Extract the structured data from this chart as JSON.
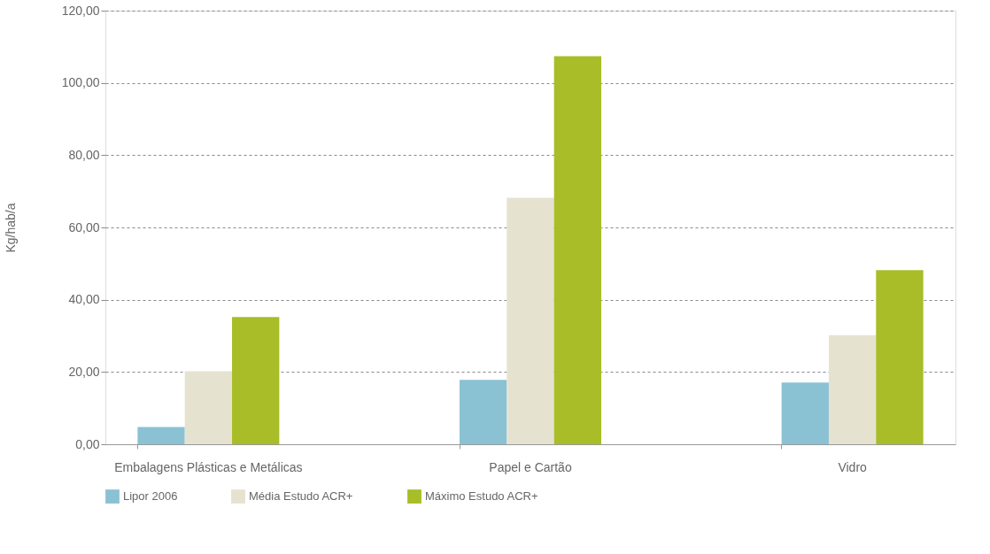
{
  "chart_data": {
    "type": "bar",
    "ylabel": "Kg/hab/a",
    "categories": [
      "Embalagens Plásticas e Metálicas",
      "Papel e Cartão",
      "Vidro"
    ],
    "series": [
      {
        "name": "Lipor 2006",
        "color": "#8ac2d4",
        "values": [
          4.8,
          17.8,
          17.1
        ]
      },
      {
        "name": "Média Estudo ACR+",
        "color": "#e5e2d0",
        "values": [
          20.2,
          68.2,
          30.2
        ]
      },
      {
        "name": "Máximo Estudo ACR+",
        "color": "#a8bd27",
        "values": [
          35.2,
          107.4,
          48.2
        ]
      }
    ],
    "ylim": [
      0,
      120
    ],
    "yticks": [
      {
        "value": 0,
        "label": "0,00"
      },
      {
        "value": 20,
        "label": "20,00"
      },
      {
        "value": 40,
        "label": "40,00"
      },
      {
        "value": 60,
        "label": "60,00"
      },
      {
        "value": 80,
        "label": "80,00"
      },
      {
        "value": 100,
        "label": "100,00"
      },
      {
        "value": 120,
        "label": "120,00"
      }
    ],
    "grid": "y",
    "legend": "bottom"
  }
}
